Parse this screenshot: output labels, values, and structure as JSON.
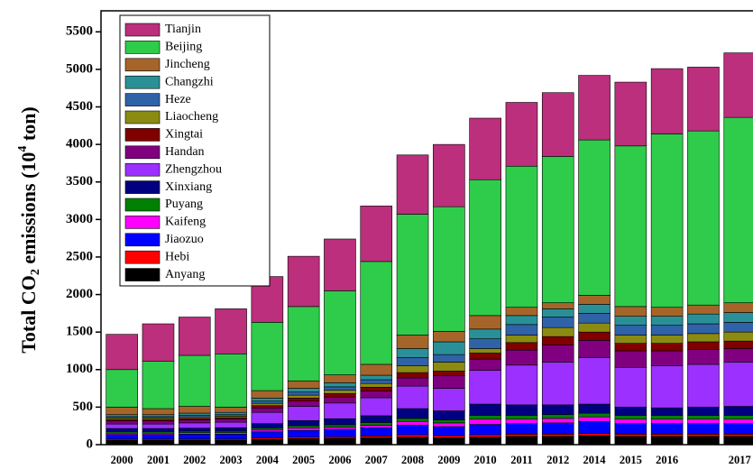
{
  "chart_data": {
    "type": "stacked_bar",
    "y_label": {
      "prefix": "Total CO",
      "sub": "2",
      "mid": " emissions (10",
      "sup": "4",
      "suffix": " ton)"
    },
    "categories": [
      "2000",
      "2001",
      "2002",
      "2003",
      "2004",
      "2005",
      "2006",
      "2007",
      "2008",
      "2009",
      "2010",
      "2011",
      "2012",
      "2014",
      "2015",
      "2016",
      null,
      "2017"
    ],
    "ylim": [
      0,
      5780
    ],
    "yticks": [
      0,
      500,
      1000,
      1500,
      2000,
      2500,
      3000,
      3500,
      4000,
      4500,
      5000,
      5500
    ],
    "legend": "top-left",
    "series": [
      {
        "name": "Anyang",
        "color": "#000000",
        "values": [
          60,
          60,
          60,
          60,
          70,
          80,
          85,
          90,
          100,
          90,
          100,
          110,
          110,
          120,
          110,
          110,
          110,
          110
        ]
      },
      {
        "name": "Hebi",
        "color": "#ff0000",
        "values": [
          15,
          15,
          15,
          15,
          20,
          20,
          20,
          25,
          30,
          30,
          30,
          30,
          30,
          30,
          30,
          30,
          30,
          30
        ]
      },
      {
        "name": "Jiaozuo",
        "color": "#0000ff",
        "values": [
          60,
          60,
          65,
          65,
          80,
          90,
          100,
          110,
          130,
          120,
          140,
          140,
          150,
          160,
          140,
          140,
          140,
          140
        ]
      },
      {
        "name": "Kaifeng",
        "color": "#ff00ff",
        "values": [
          20,
          20,
          20,
          20,
          25,
          30,
          30,
          35,
          50,
          50,
          70,
          60,
          60,
          60,
          60,
          60,
          60,
          60
        ]
      },
      {
        "name": "Puyang",
        "color": "#008000",
        "values": [
          20,
          20,
          20,
          20,
          25,
          30,
          30,
          35,
          40,
          40,
          50,
          50,
          50,
          50,
          50,
          50,
          50,
          50
        ]
      },
      {
        "name": "Xinxiang",
        "color": "#000080",
        "values": [
          40,
          40,
          40,
          45,
          60,
          70,
          80,
          90,
          130,
          120,
          150,
          140,
          130,
          120,
          110,
          100,
          110,
          120
        ]
      },
      {
        "name": "Zhengzhou",
        "color": "#9b30ff",
        "values": [
          60,
          60,
          70,
          75,
          150,
          190,
          210,
          240,
          300,
          300,
          450,
          530,
          570,
          620,
          530,
          560,
          570,
          590
        ]
      },
      {
        "name": "Handan",
        "color": "#800080",
        "values": [
          40,
          40,
          40,
          40,
          60,
          70,
          80,
          90,
          110,
          170,
          150,
          200,
          230,
          230,
          220,
          200,
          200,
          180
        ]
      },
      {
        "name": "Xingtai",
        "color": "#800000",
        "values": [
          20,
          20,
          20,
          20,
          30,
          40,
          45,
          50,
          70,
          60,
          80,
          100,
          110,
          110,
          100,
          100,
          100,
          100
        ]
      },
      {
        "name": "Liaocheng",
        "color": "#8b8b12",
        "values": [
          20,
          20,
          20,
          20,
          30,
          40,
          45,
          50,
          90,
          120,
          60,
          100,
          120,
          120,
          110,
          110,
          110,
          120
        ]
      },
      {
        "name": "Heze",
        "color": "#3062a8",
        "values": [
          20,
          20,
          20,
          20,
          30,
          40,
          45,
          50,
          110,
          100,
          130,
          140,
          140,
          130,
          130,
          130,
          130,
          130
        ]
      },
      {
        "name": "Changzhi",
        "color": "#2a9098",
        "values": [
          25,
          25,
          30,
          30,
          40,
          50,
          55,
          60,
          120,
          170,
          130,
          120,
          110,
          120,
          120,
          120,
          130,
          130
        ]
      },
      {
        "name": "Jincheng",
        "color": "#a5652a",
        "values": [
          100,
          80,
          90,
          70,
          100,
          100,
          105,
          145,
          180,
          140,
          180,
          110,
          80,
          120,
          130,
          120,
          120,
          130
        ]
      },
      {
        "name": "Beijing",
        "color": "#2ecc4a",
        "values": [
          500,
          630,
          680,
          710,
          910,
          990,
          1120,
          1370,
          1610,
          1660,
          1810,
          1880,
          1950,
          2070,
          2140,
          2310,
          2320,
          2470
        ]
      },
      {
        "name": "Tianjin",
        "color": "#bb2f7c",
        "values": [
          470,
          500,
          510,
          600,
          610,
          670,
          690,
          740,
          790,
          830,
          820,
          850,
          850,
          860,
          850,
          870,
          850,
          860
        ]
      }
    ]
  }
}
